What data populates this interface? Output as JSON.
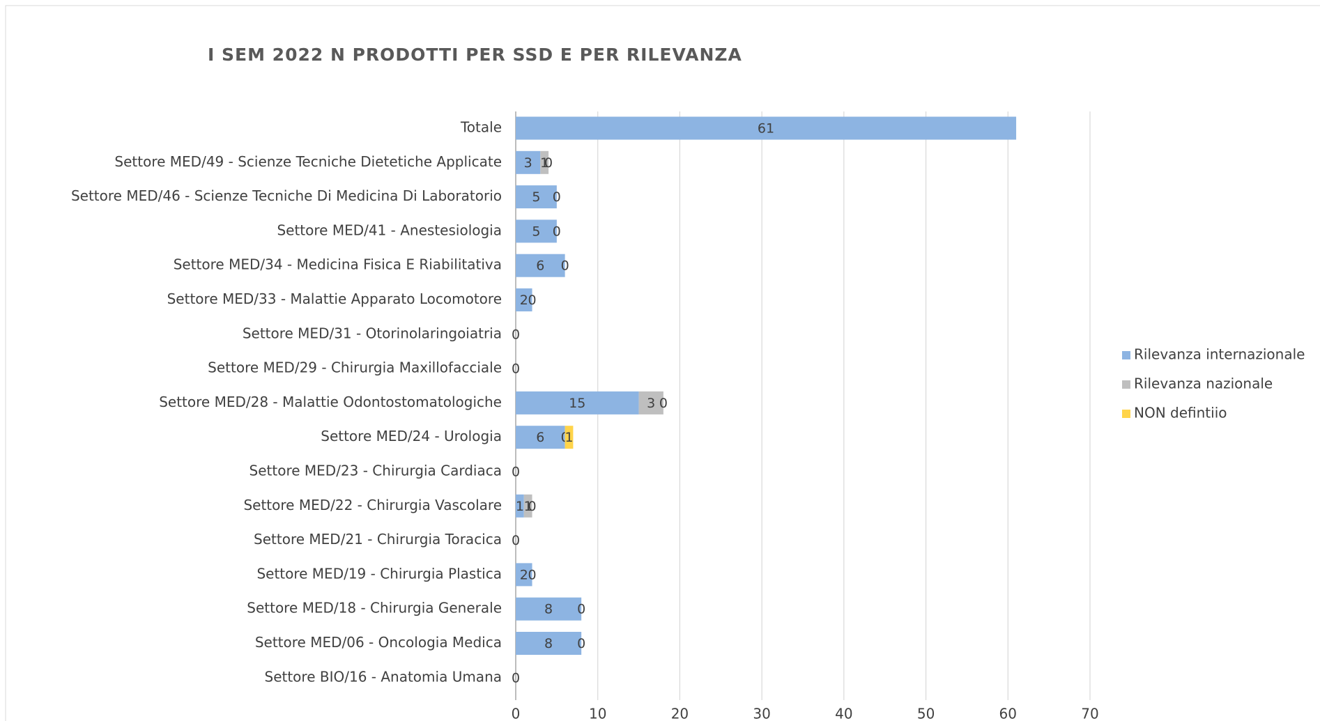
{
  "chart_data": {
    "type": "stacked-barh",
    "title": "I SEM 2022 N PRODOTTI PER SSD E PER RILEVANZA",
    "categories": [
      "Totale",
      "Settore MED/49 - Scienze Tecniche Dietetiche Applicate",
      "Settore MED/46 - Scienze Tecniche Di Medicina Di Laboratorio",
      "Settore MED/41 - Anestesiologia",
      "Settore MED/34 - Medicina Fisica E Riabilitativa",
      "Settore MED/33 - Malattie Apparato Locomotore",
      "Settore MED/31 - Otorinolaringoiatria",
      "Settore MED/29 - Chirurgia Maxillofacciale",
      "Settore MED/28 - Malattie Odontostomatologiche",
      "Settore MED/24 - Urologia",
      "Settore MED/23 - Chirurgia Cardiaca",
      "Settore MED/22 - Chirurgia Vascolare",
      "Settore MED/21 - Chirurgia Toracica",
      "Settore MED/19 - Chirurgia Plastica",
      "Settore MED/18 - Chirurgia Generale",
      "Settore MED/06 - Oncologia Medica",
      "Settore BIO/16 - Anatomia Umana"
    ],
    "series": [
      {
        "name": "Rilevanza internazionale",
        "color": "#8db4e2",
        "values": [
          61,
          3,
          5,
          5,
          6,
          2,
          0,
          0,
          15,
          6,
          0,
          1,
          0,
          2,
          8,
          8,
          0
        ]
      },
      {
        "name": "Rilevanza nazionale",
        "color": "#bfbfbf",
        "values": [
          null,
          1,
          null,
          null,
          null,
          null,
          null,
          null,
          3,
          0,
          null,
          1,
          null,
          null,
          null,
          null,
          null
        ]
      },
      {
        "name": "NON defintiio",
        "color": "#ffd44a",
        "values": [
          null,
          0,
          0,
          0,
          0,
          0,
          null,
          null,
          0,
          1,
          null,
          0,
          null,
          0,
          0,
          0,
          null
        ]
      }
    ],
    "xlim": [
      0,
      70
    ],
    "xticks": [
      0,
      10,
      20,
      30,
      40,
      50,
      60,
      70
    ],
    "grid": true,
    "legend": "right"
  }
}
